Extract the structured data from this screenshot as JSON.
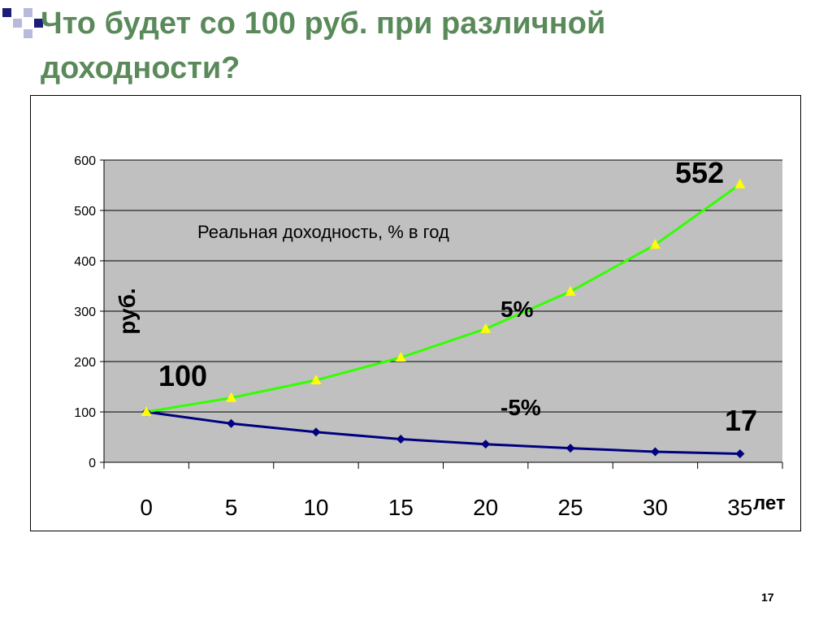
{
  "slide": {
    "title": "Что будет со 100 руб. при различной доходности?",
    "page_number": "17",
    "colors": {
      "title": "#5a8a5a",
      "decor_dark": "#1c1c7a",
      "decor_light": "#b9b9dc"
    }
  },
  "chart_data": {
    "type": "line",
    "title": "",
    "xlabel": "лет",
    "ylabel": "руб.",
    "caption": "Реальная доходность, % в год",
    "categories": [
      "0",
      "5",
      "10",
      "15",
      "20",
      "25",
      "30",
      "35"
    ],
    "x": [
      0,
      5,
      10,
      15,
      20,
      25,
      30,
      35
    ],
    "ylim": [
      0,
      600
    ],
    "yticks": [
      0,
      100,
      200,
      300,
      400,
      500,
      600
    ],
    "grid": true,
    "legend": "none",
    "plot_background": "#c0c0c0",
    "series": [
      {
        "name": "5%",
        "values": [
          100,
          128,
          163,
          208,
          265,
          339,
          432,
          552
        ],
        "color": "#33ff00",
        "marker": "triangle",
        "marker_color": "#ffff00"
      },
      {
        "name": "-5%",
        "values": [
          100,
          77,
          60,
          46,
          36,
          28,
          21,
          17
        ],
        "color": "#000080",
        "marker": "diamond",
        "marker_color": "#000080"
      }
    ],
    "annotations": [
      {
        "text": "552",
        "series": 0,
        "index": 7
      },
      {
        "text": "100",
        "series": 0,
        "index": 0
      },
      {
        "text": "17",
        "series": 1,
        "index": 7
      }
    ]
  }
}
